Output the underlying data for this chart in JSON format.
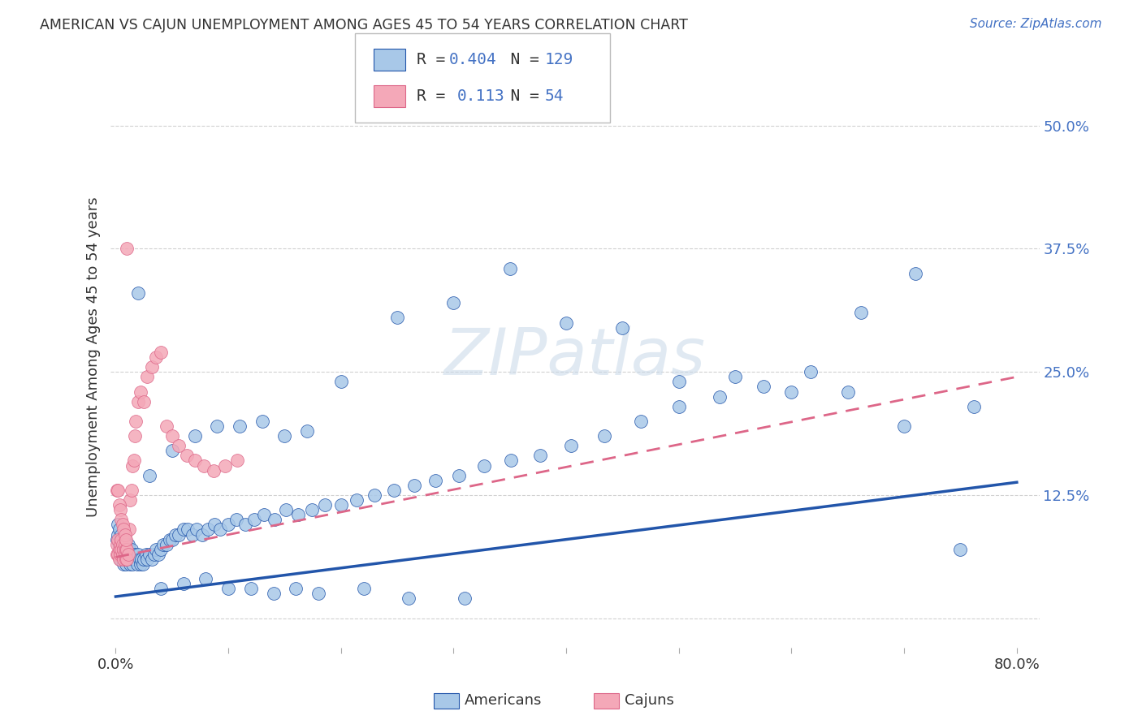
{
  "title": "AMERICAN VS CAJUN UNEMPLOYMENT AMONG AGES 45 TO 54 YEARS CORRELATION CHART",
  "source": "Source: ZipAtlas.com",
  "ylabel": "Unemployment Among Ages 45 to 54 years",
  "xlim": [
    -0.005,
    0.82
  ],
  "ylim": [
    -0.03,
    0.56
  ],
  "xticks": [
    0.0,
    0.1,
    0.2,
    0.3,
    0.4,
    0.5,
    0.6,
    0.7,
    0.8
  ],
  "xticklabels": [
    "0.0%",
    "",
    "",
    "",
    "",
    "",
    "",
    "",
    "80.0%"
  ],
  "ytick_positions": [
    0.0,
    0.125,
    0.25,
    0.375,
    0.5
  ],
  "yticklabels": [
    "",
    "12.5%",
    "25.0%",
    "37.5%",
    "50.0%"
  ],
  "grid_color": "#cccccc",
  "background_color": "#ffffff",
  "american_color": "#a8c8e8",
  "cajun_color": "#f4a8b8",
  "american_line_color": "#2255aa",
  "cajun_line_color": "#dd6688",
  "legend_r_american": "0.404",
  "legend_n_american": "129",
  "legend_r_cajun": "0.113",
  "legend_n_cajun": "54",
  "am_line_x": [
    0.0,
    0.8
  ],
  "am_line_y": [
    0.022,
    0.138
  ],
  "ca_line_x": [
    0.0,
    0.8
  ],
  "ca_line_y": [
    0.062,
    0.245
  ],
  "americans_x": [
    0.001,
    0.002,
    0.002,
    0.003,
    0.003,
    0.003,
    0.004,
    0.004,
    0.004,
    0.005,
    0.005,
    0.005,
    0.006,
    0.006,
    0.006,
    0.007,
    0.007,
    0.007,
    0.008,
    0.008,
    0.008,
    0.009,
    0.009,
    0.009,
    0.01,
    0.01,
    0.011,
    0.011,
    0.012,
    0.012,
    0.013,
    0.013,
    0.014,
    0.015,
    0.015,
    0.016,
    0.017,
    0.018,
    0.019,
    0.02,
    0.021,
    0.022,
    0.023,
    0.024,
    0.025,
    0.027,
    0.028,
    0.03,
    0.032,
    0.034,
    0.036,
    0.038,
    0.04,
    0.042,
    0.045,
    0.048,
    0.05,
    0.053,
    0.056,
    0.06,
    0.064,
    0.068,
    0.072,
    0.077,
    0.082,
    0.088,
    0.093,
    0.1,
    0.107,
    0.115,
    0.123,
    0.132,
    0.141,
    0.151,
    0.162,
    0.174,
    0.186,
    0.2,
    0.214,
    0.23,
    0.247,
    0.265,
    0.284,
    0.305,
    0.327,
    0.351,
    0.377,
    0.404,
    0.434,
    0.466,
    0.5,
    0.536,
    0.575,
    0.617,
    0.662,
    0.71,
    0.762,
    0.03,
    0.05,
    0.07,
    0.09,
    0.11,
    0.13,
    0.15,
    0.17,
    0.2,
    0.25,
    0.3,
    0.35,
    0.4,
    0.45,
    0.5,
    0.55,
    0.6,
    0.65,
    0.7,
    0.75,
    0.02,
    0.04,
    0.06,
    0.08,
    0.1,
    0.12,
    0.14,
    0.16,
    0.18,
    0.22,
    0.26,
    0.31
  ],
  "americans_y": [
    0.08,
    0.095,
    0.085,
    0.075,
    0.065,
    0.09,
    0.08,
    0.07,
    0.06,
    0.085,
    0.075,
    0.065,
    0.08,
    0.07,
    0.06,
    0.075,
    0.065,
    0.055,
    0.08,
    0.07,
    0.06,
    0.075,
    0.065,
    0.055,
    0.07,
    0.06,
    0.075,
    0.065,
    0.07,
    0.06,
    0.065,
    0.055,
    0.07,
    0.065,
    0.055,
    0.06,
    0.065,
    0.06,
    0.055,
    0.065,
    0.06,
    0.055,
    0.06,
    0.055,
    0.06,
    0.065,
    0.06,
    0.065,
    0.06,
    0.065,
    0.07,
    0.065,
    0.07,
    0.075,
    0.075,
    0.08,
    0.08,
    0.085,
    0.085,
    0.09,
    0.09,
    0.085,
    0.09,
    0.085,
    0.09,
    0.095,
    0.09,
    0.095,
    0.1,
    0.095,
    0.1,
    0.105,
    0.1,
    0.11,
    0.105,
    0.11,
    0.115,
    0.115,
    0.12,
    0.125,
    0.13,
    0.135,
    0.14,
    0.145,
    0.155,
    0.16,
    0.165,
    0.175,
    0.185,
    0.2,
    0.215,
    0.225,
    0.235,
    0.25,
    0.31,
    0.35,
    0.215,
    0.145,
    0.17,
    0.185,
    0.195,
    0.195,
    0.2,
    0.185,
    0.19,
    0.24,
    0.305,
    0.32,
    0.355,
    0.3,
    0.295,
    0.24,
    0.245,
    0.23,
    0.23,
    0.195,
    0.07,
    0.33,
    0.03,
    0.035,
    0.04,
    0.03,
    0.03,
    0.025,
    0.03,
    0.025,
    0.03,
    0.02,
    0.02
  ],
  "cajuns_x": [
    0.001,
    0.001,
    0.002,
    0.002,
    0.003,
    0.003,
    0.004,
    0.004,
    0.005,
    0.005,
    0.006,
    0.006,
    0.007,
    0.007,
    0.008,
    0.008,
    0.009,
    0.009,
    0.01,
    0.01,
    0.011,
    0.012,
    0.013,
    0.014,
    0.015,
    0.016,
    0.017,
    0.018,
    0.02,
    0.022,
    0.025,
    0.028,
    0.032,
    0.036,
    0.04,
    0.045,
    0.05,
    0.056,
    0.063,
    0.07,
    0.078,
    0.087,
    0.097,
    0.108,
    0.001,
    0.002,
    0.003,
    0.004,
    0.005,
    0.006,
    0.007,
    0.008,
    0.009,
    0.01
  ],
  "cajuns_y": [
    0.065,
    0.075,
    0.065,
    0.08,
    0.07,
    0.06,
    0.075,
    0.065,
    0.08,
    0.07,
    0.075,
    0.065,
    0.07,
    0.06,
    0.075,
    0.065,
    0.07,
    0.06,
    0.07,
    0.06,
    0.065,
    0.09,
    0.12,
    0.13,
    0.155,
    0.16,
    0.185,
    0.2,
    0.22,
    0.23,
    0.22,
    0.245,
    0.255,
    0.265,
    0.27,
    0.195,
    0.185,
    0.175,
    0.165,
    0.16,
    0.155,
    0.15,
    0.155,
    0.16,
    0.13,
    0.13,
    0.115,
    0.11,
    0.1,
    0.095,
    0.09,
    0.085,
    0.08,
    0.375
  ]
}
